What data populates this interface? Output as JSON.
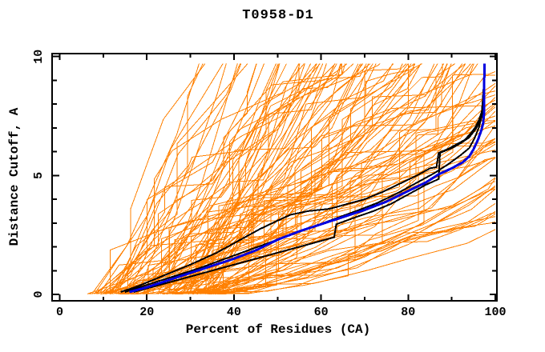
{
  "chart_data": {
    "type": "line",
    "title": "T0958-D1",
    "xlabel": "Percent of Residues (CA)",
    "ylabel": "Distance Cutoff, A",
    "xlim": [
      0,
      100
    ],
    "ylim": [
      0,
      10
    ],
    "x_ticks_major": [
      0,
      20,
      40,
      60,
      80,
      100
    ],
    "x_tick_minor_step": 10,
    "y_ticks_major": [
      0,
      5,
      10
    ],
    "y_tick_minor_step": 1,
    "grid": false,
    "legend": "none",
    "colors": {
      "ensemble": "#ff8000",
      "reference": "#000000",
      "highlight": "#0000e0",
      "axis": "#000000",
      "background": "#ffffff"
    },
    "series": [
      {
        "name": "reference-black-1",
        "color": "#000000",
        "width": 2,
        "points": [
          [
            14,
            0.1
          ],
          [
            18,
            0.35
          ],
          [
            24,
            0.8
          ],
          [
            30,
            1.25
          ],
          [
            36,
            1.75
          ],
          [
            42,
            2.35
          ],
          [
            46,
            2.75
          ],
          [
            50,
            3.1
          ],
          [
            53,
            3.35
          ],
          [
            57,
            3.5
          ],
          [
            62,
            3.6
          ],
          [
            66,
            3.8
          ],
          [
            70,
            4.0
          ],
          [
            74,
            4.3
          ],
          [
            78,
            4.65
          ],
          [
            82,
            5.0
          ],
          [
            85,
            5.3
          ],
          [
            86.5,
            5.35
          ],
          [
            87,
            5.95
          ],
          [
            89,
            6.1
          ],
          [
            91,
            6.3
          ],
          [
            93,
            6.5
          ],
          [
            94.5,
            6.8
          ],
          [
            95.5,
            7.05
          ],
          [
            96.3,
            7.35
          ],
          [
            96.9,
            7.7
          ],
          [
            97.1,
            8.1
          ],
          [
            97.3,
            8.65
          ]
        ]
      },
      {
        "name": "reference-black-2",
        "color": "#000000",
        "width": 2,
        "points": [
          [
            15,
            0.1
          ],
          [
            20,
            0.4
          ],
          [
            26,
            0.75
          ],
          [
            32,
            1.1
          ],
          [
            38,
            1.5
          ],
          [
            44,
            1.9
          ],
          [
            50,
            2.3
          ],
          [
            56,
            2.7
          ],
          [
            62,
            3.1
          ],
          [
            68,
            3.5
          ],
          [
            73,
            3.85
          ],
          [
            78,
            4.3
          ],
          [
            82,
            4.7
          ],
          [
            86,
            5.1
          ],
          [
            89,
            5.45
          ],
          [
            92,
            5.85
          ],
          [
            94,
            6.15
          ],
          [
            95.2,
            6.55
          ],
          [
            96.2,
            7.0
          ],
          [
            96.9,
            7.5
          ],
          [
            97.2,
            8.0
          ],
          [
            97.5,
            8.5
          ]
        ]
      },
      {
        "name": "reference-black-3",
        "color": "#000000",
        "width": 2,
        "points": [
          [
            17,
            0.1
          ],
          [
            24,
            0.45
          ],
          [
            31,
            0.8
          ],
          [
            38,
            1.15
          ],
          [
            45,
            1.5
          ],
          [
            52,
            1.85
          ],
          [
            58,
            2.15
          ],
          [
            63,
            2.4
          ],
          [
            63.5,
            2.95
          ],
          [
            68,
            3.25
          ],
          [
            72,
            3.5
          ],
          [
            76,
            3.8
          ],
          [
            80,
            4.2
          ],
          [
            84,
            4.6
          ],
          [
            87,
            4.85
          ],
          [
            87.3,
            5.95
          ],
          [
            90,
            6.15
          ],
          [
            92,
            6.35
          ],
          [
            94,
            6.6
          ],
          [
            95.5,
            6.95
          ],
          [
            96.5,
            7.3
          ],
          [
            97.1,
            7.75
          ],
          [
            97.4,
            8.3
          ]
        ]
      },
      {
        "name": "model-highlight-blue",
        "color": "#0000e0",
        "width": 3,
        "points": [
          [
            16,
            0.1
          ],
          [
            20,
            0.3
          ],
          [
            25,
            0.6
          ],
          [
            30,
            0.9
          ],
          [
            35,
            1.2
          ],
          [
            40,
            1.5
          ],
          [
            45,
            1.85
          ],
          [
            50,
            2.3
          ],
          [
            55,
            2.65
          ],
          [
            60,
            2.95
          ],
          [
            65,
            3.25
          ],
          [
            70,
            3.55
          ],
          [
            75,
            3.9
          ],
          [
            80,
            4.35
          ],
          [
            84,
            4.7
          ],
          [
            87,
            5.05
          ],
          [
            90,
            5.3
          ],
          [
            92.5,
            5.55
          ],
          [
            94,
            5.8
          ],
          [
            95,
            6.1
          ],
          [
            96,
            6.5
          ],
          [
            96.8,
            6.9
          ],
          [
            97.2,
            7.2
          ],
          [
            97.4,
            7.6
          ],
          [
            97.5,
            9.7
          ]
        ]
      }
    ],
    "ensemble": {
      "name": "server-model-curves",
      "color": "#ff8000",
      "count": 120,
      "stroke_width": 1,
      "x_start_range": [
        6,
        38
      ],
      "y_cap": 9.7,
      "slope_base_range": [
        0.035,
        0.395
      ],
      "segment_length_range": [
        4,
        14
      ],
      "jump_chance": 0.1,
      "jump_size_range": [
        0.5,
        3.0
      ],
      "plateau_chance": 0.1,
      "seed": 193,
      "description": "Orange model accuracy curves fanning from lower-left (~6-38% residues at 0 A) toward upper right; steepest reach 9.7 A cutoff near 35% residues, shallowest reach ~2.5 A at 100%."
    }
  }
}
